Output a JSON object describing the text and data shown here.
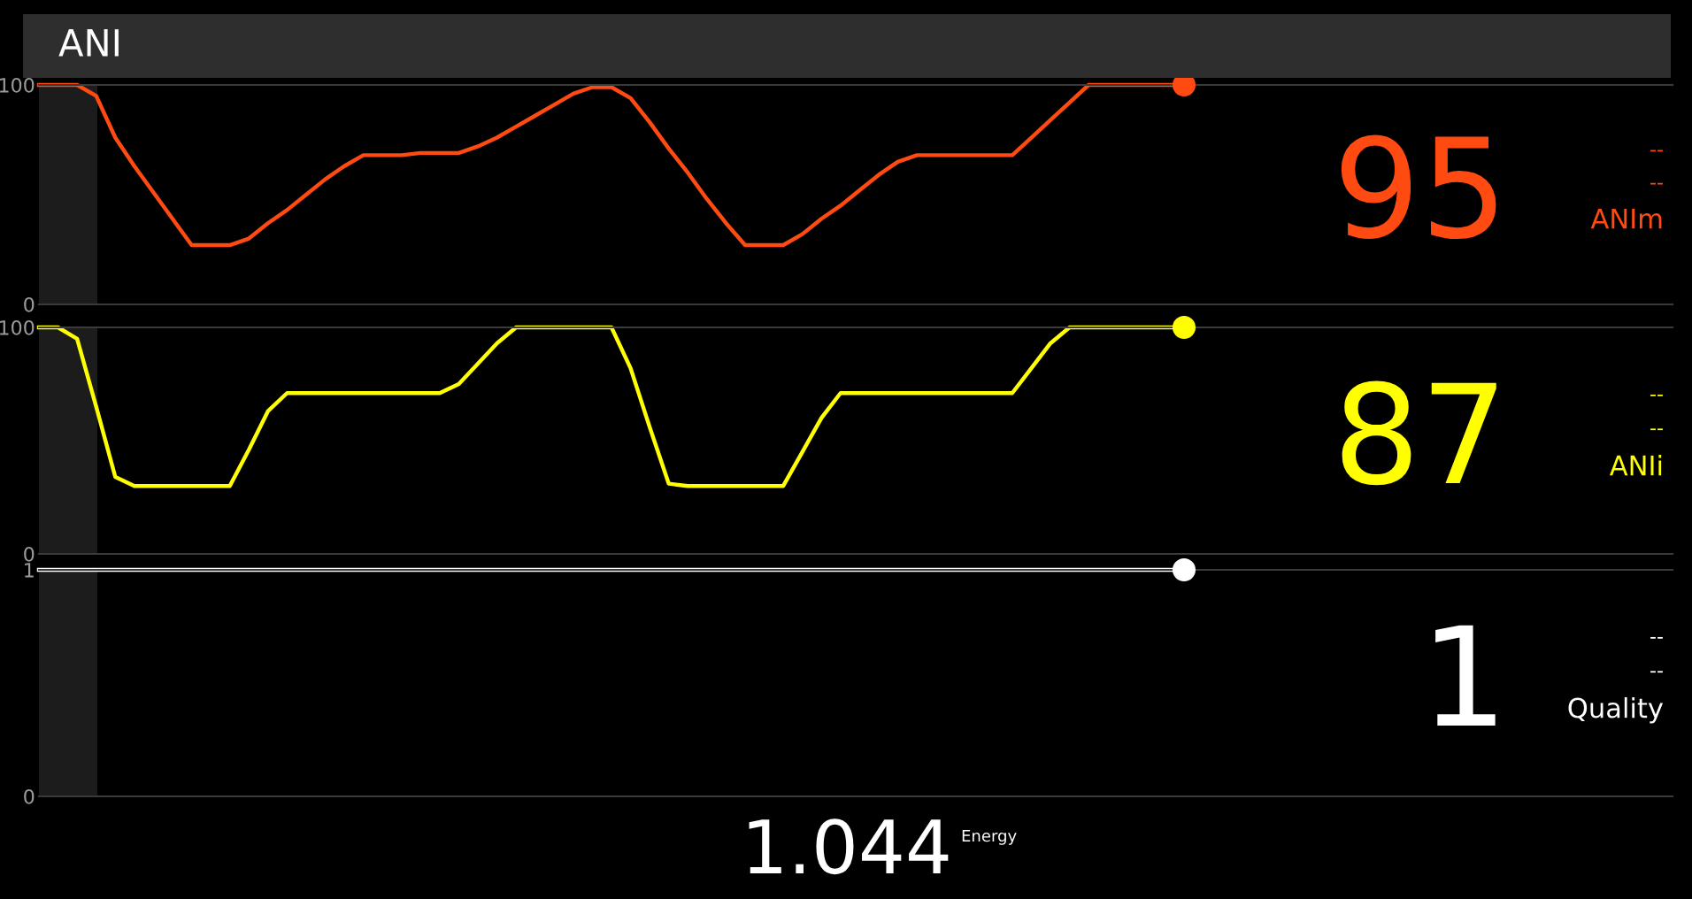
{
  "chart_data": [
    {
      "type": "line",
      "title": "ANI",
      "categories": [
        null,
        null,
        null,
        null,
        null,
        null,
        null,
        null,
        null,
        null,
        null,
        null,
        null,
        null,
        null,
        null,
        null,
        null,
        null,
        null,
        null,
        null,
        null,
        null,
        null,
        null,
        null,
        null,
        null,
        null,
        null,
        null,
        null,
        null,
        null,
        null,
        null,
        null,
        null,
        null,
        null,
        null,
        null,
        null,
        null,
        null,
        null,
        null,
        null,
        null,
        null,
        null,
        null,
        null,
        null,
        null,
        null,
        null,
        null,
        null,
        null
      ],
      "series": [
        {
          "color": "#ff4a12",
          "values": [
            100,
            100,
            100,
            95,
            76,
            63,
            51,
            39,
            27,
            27,
            27,
            30,
            37,
            43,
            50,
            57,
            63,
            68,
            68,
            68,
            69,
            69,
            69,
            72,
            76,
            81,
            86,
            91,
            96,
            99,
            99,
            94,
            83,
            71,
            60,
            48,
            37,
            27,
            27,
            27,
            32,
            39,
            45,
            52,
            59,
            65,
            68,
            68,
            68,
            68,
            68,
            68,
            76,
            84,
            92,
            100,
            100,
            100,
            100,
            100,
            100
          ]
        },
        {
          "type": "scatter",
          "marker": "circle",
          "color": "#ff4a12",
          "values": [
            null,
            null,
            null,
            null,
            null,
            null,
            null,
            null,
            null,
            null,
            null,
            null,
            null,
            null,
            null,
            null,
            null,
            null,
            null,
            null,
            null,
            null,
            null,
            null,
            null,
            null,
            null,
            null,
            null,
            null,
            null,
            null,
            null,
            null,
            null,
            null,
            null,
            null,
            null,
            null,
            null,
            null,
            null,
            null,
            null,
            null,
            null,
            null,
            null,
            null,
            null,
            null,
            null,
            null,
            null,
            null,
            null,
            null,
            null,
            null,
            100
          ]
        }
      ],
      "ylim": [
        0,
        100
      ],
      "yticks": [
        0,
        100
      ],
      "annotations": [
        "95",
        "--",
        "--",
        "ANIm"
      ]
    },
    {
      "type": "line",
      "categories": [
        null,
        null,
        null,
        null,
        null,
        null,
        null,
        null,
        null,
        null,
        null,
        null,
        null,
        null,
        null,
        null,
        null,
        null,
        null,
        null,
        null,
        null,
        null,
        null,
        null,
        null,
        null,
        null,
        null,
        null,
        null,
        null,
        null,
        null,
        null,
        null,
        null,
        null,
        null,
        null,
        null,
        null,
        null,
        null,
        null,
        null,
        null,
        null,
        null,
        null,
        null,
        null,
        null,
        null,
        null,
        null,
        null,
        null,
        null,
        null,
        null
      ],
      "series": [
        {
          "color": "#ffff00",
          "values": [
            100,
            100,
            95,
            65,
            34,
            30,
            30,
            30,
            30,
            30,
            30,
            46,
            63,
            71,
            71,
            71,
            71,
            71,
            71,
            71,
            71,
            71,
            75,
            84,
            93,
            100,
            100,
            100,
            100,
            100,
            100,
            82,
            56,
            31,
            30,
            30,
            30,
            30,
            30,
            30,
            45,
            60,
            71,
            71,
            71,
            71,
            71,
            71,
            71,
            71,
            71,
            71,
            82,
            93,
            100,
            100,
            100,
            100,
            100,
            100,
            100
          ]
        },
        {
          "type": "scatter",
          "marker": "circle",
          "color": "#ffff00",
          "values": [
            null,
            null,
            null,
            null,
            null,
            null,
            null,
            null,
            null,
            null,
            null,
            null,
            null,
            null,
            null,
            null,
            null,
            null,
            null,
            null,
            null,
            null,
            null,
            null,
            null,
            null,
            null,
            null,
            null,
            null,
            null,
            null,
            null,
            null,
            null,
            null,
            null,
            null,
            null,
            null,
            null,
            null,
            null,
            null,
            null,
            null,
            null,
            null,
            null,
            null,
            null,
            null,
            null,
            null,
            null,
            null,
            null,
            null,
            null,
            null,
            100
          ]
        }
      ],
      "ylim": [
        0,
        100
      ],
      "yticks": [
        0,
        100
      ],
      "annotations": [
        "87",
        "--",
        "--",
        "ANIi"
      ]
    },
    {
      "type": "line",
      "categories": [
        null,
        null,
        null,
        null,
        null,
        null,
        null,
        null,
        null,
        null,
        null,
        null,
        null,
        null,
        null,
        null,
        null,
        null,
        null,
        null,
        null,
        null,
        null,
        null,
        null,
        null,
        null,
        null,
        null,
        null,
        null,
        null,
        null,
        null,
        null,
        null,
        null,
        null,
        null,
        null,
        null,
        null,
        null,
        null,
        null,
        null,
        null,
        null,
        null,
        null,
        null,
        null,
        null,
        null,
        null,
        null,
        null,
        null,
        null,
        null,
        null
      ],
      "series": [
        {
          "color": "#ffffff",
          "values": [
            1,
            1,
            1,
            1,
            1,
            1,
            1,
            1,
            1,
            1,
            1,
            1,
            1,
            1,
            1,
            1,
            1,
            1,
            1,
            1,
            1,
            1,
            1,
            1,
            1,
            1,
            1,
            1,
            1,
            1,
            1,
            1,
            1,
            1,
            1,
            1,
            1,
            1,
            1,
            1,
            1,
            1,
            1,
            1,
            1,
            1,
            1,
            1,
            1,
            1,
            1,
            1,
            1,
            1,
            1,
            1,
            1,
            1,
            1,
            1,
            1
          ]
        },
        {
          "type": "scatter",
          "marker": "circle",
          "color": "#ffffff",
          "values": [
            null,
            null,
            null,
            null,
            null,
            null,
            null,
            null,
            null,
            null,
            null,
            null,
            null,
            null,
            null,
            null,
            null,
            null,
            null,
            null,
            null,
            null,
            null,
            null,
            null,
            null,
            null,
            null,
            null,
            null,
            null,
            null,
            null,
            null,
            null,
            null,
            null,
            null,
            null,
            null,
            null,
            null,
            null,
            null,
            null,
            null,
            null,
            null,
            null,
            null,
            null,
            null,
            null,
            null,
            null,
            null,
            null,
            null,
            null,
            null,
            1
          ]
        }
      ],
      "ylim": [
        0,
        1
      ],
      "yticks": [
        0,
        1
      ],
      "annotations": [
        "1",
        "--",
        "--",
        "Quality",
        "1.044",
        "Energy"
      ]
    }
  ]
}
